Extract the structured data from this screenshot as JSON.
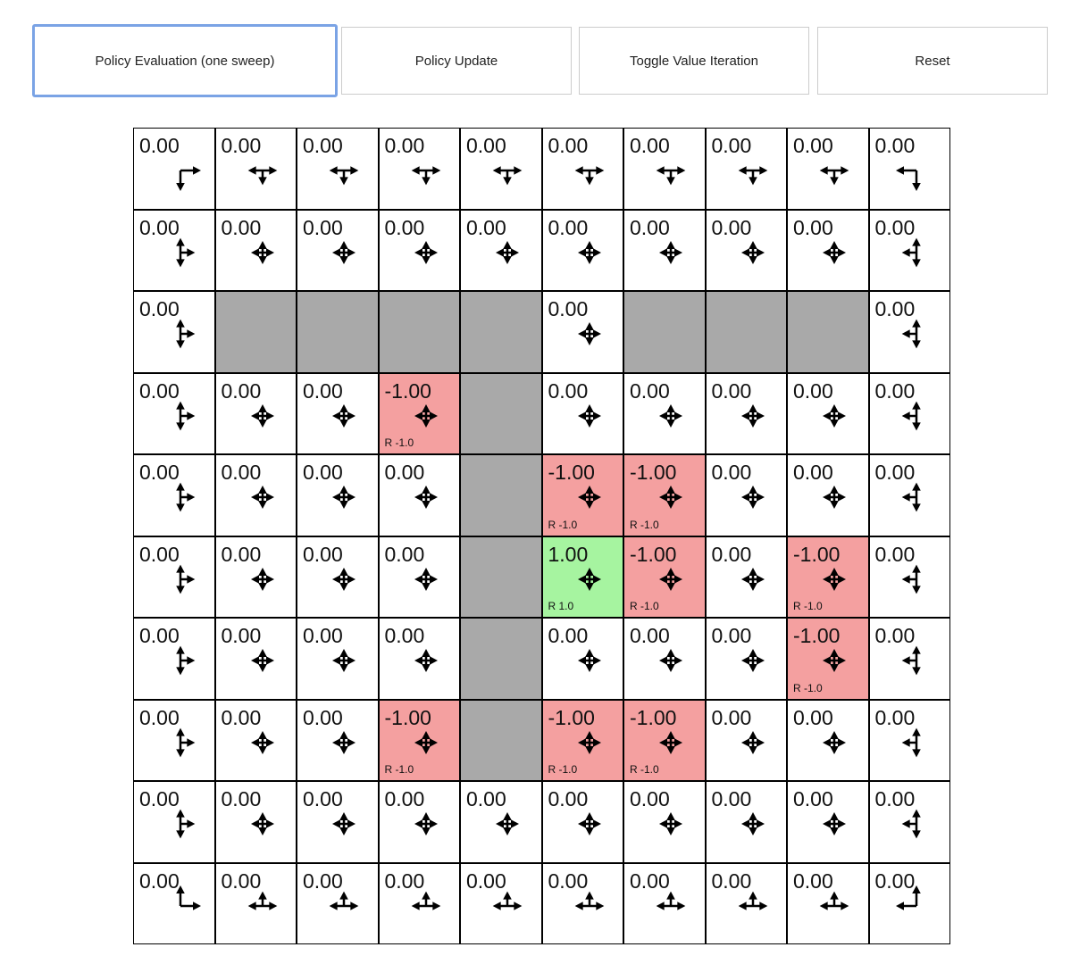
{
  "toolbar": {
    "buttons": [
      {
        "label": "Policy Evaluation (one sweep)",
        "active": true
      },
      {
        "label": "Policy Update",
        "active": false
      },
      {
        "label": "Toggle Value Iteration",
        "active": false
      },
      {
        "label": "Reset",
        "active": false
      }
    ]
  },
  "colors": {
    "wall": "#a9a9a9",
    "negative": "#f4a0a0",
    "positive": "#a6f4a0"
  },
  "grid": {
    "rows": 10,
    "cols": 10,
    "walls": [
      [
        2,
        1
      ],
      [
        2,
        2
      ],
      [
        2,
        3
      ],
      [
        2,
        4
      ],
      [
        2,
        6
      ],
      [
        2,
        7
      ],
      [
        2,
        8
      ],
      [
        3,
        4
      ],
      [
        4,
        4
      ],
      [
        5,
        4
      ],
      [
        6,
        4
      ],
      [
        7,
        4
      ]
    ],
    "rewards": [
      {
        "r": 3,
        "c": 3,
        "value": "-1.00",
        "reward": "R -1.0"
      },
      {
        "r": 4,
        "c": 5,
        "value": "-1.00",
        "reward": "R -1.0"
      },
      {
        "r": 4,
        "c": 6,
        "value": "-1.00",
        "reward": "R -1.0"
      },
      {
        "r": 5,
        "c": 5,
        "value": "1.00",
        "reward": "R 1.0"
      },
      {
        "r": 5,
        "c": 6,
        "value": "-1.00",
        "reward": "R -1.0"
      },
      {
        "r": 5,
        "c": 8,
        "value": "-1.00",
        "reward": "R -1.0"
      },
      {
        "r": 6,
        "c": 8,
        "value": "-1.00",
        "reward": "R -1.0"
      },
      {
        "r": 7,
        "c": 3,
        "value": "-1.00",
        "reward": "R -1.0"
      },
      {
        "r": 7,
        "c": 5,
        "value": "-1.00",
        "reward": "R -1.0"
      },
      {
        "r": 7,
        "c": 6,
        "value": "-1.00",
        "reward": "R -1.0"
      }
    ],
    "default_value": "0.00",
    "policy": "uniform over allowed actions"
  }
}
